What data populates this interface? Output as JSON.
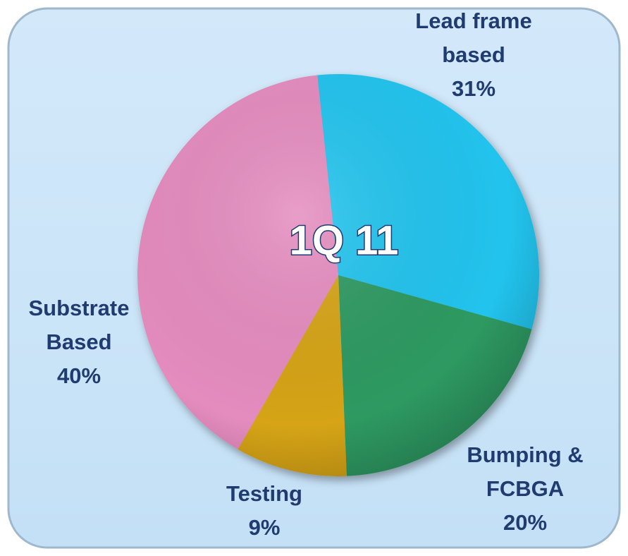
{
  "chart_data": {
    "type": "pie",
    "title": "1Q 11",
    "categories": [
      "Lead frame based",
      "Bumping & FCBGA",
      "Testing",
      "Substrate Based"
    ],
    "values": [
      31,
      20,
      9,
      40
    ],
    "value_labels": [
      "31%",
      "20%",
      "9%",
      "40%"
    ],
    "colors": [
      "#22c4ee",
      "#2f9a62",
      "#d6a412",
      "#e58cbf"
    ]
  }
}
